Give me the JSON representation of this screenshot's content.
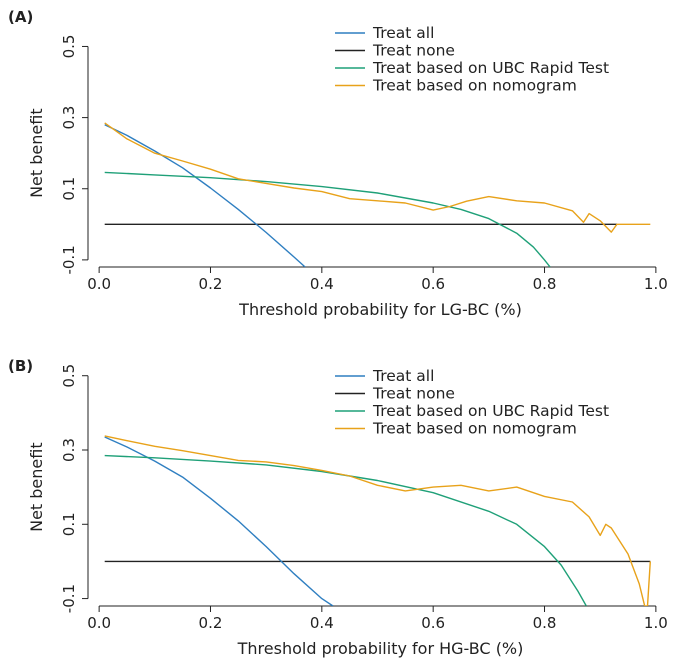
{
  "chart_data": [
    {
      "type": "line",
      "panel_label": "(A)",
      "xlabel": "Threshold probability for LG-BC (%)",
      "ylabel": "Net benefit",
      "xlim": [
        -0.02,
        1.02
      ],
      "ylim": [
        -0.12,
        0.58
      ],
      "x_ticks": [
        0.0,
        0.2,
        0.4,
        0.6,
        0.8,
        1.0
      ],
      "x_tick_labels": [
        "0.0",
        "0.2",
        "0.4",
        "0.6",
        "0.8",
        "1.0"
      ],
      "y_ticks": [
        -0.1,
        0.1,
        0.3,
        0.5
      ],
      "y_tick_labels": [
        "-0.1",
        "0.1",
        "0.3",
        "0.5"
      ],
      "grid": false,
      "legend_position": "top-right",
      "series": [
        {
          "name": "Treat all",
          "color": "#2f7fc1",
          "x": [
            0.01,
            0.05,
            0.1,
            0.15,
            0.2,
            0.25,
            0.3,
            0.35,
            0.37
          ],
          "y": [
            0.28,
            0.25,
            0.206,
            0.159,
            0.102,
            0.042,
            -0.023,
            -0.092,
            -0.12
          ]
        },
        {
          "name": "Treat none",
          "color": "#222222",
          "x": [
            0.01,
            0.93
          ],
          "y": [
            0.0,
            0.0
          ]
        },
        {
          "name": "Treat based on UBC Rapid Test",
          "color": "#1fa078",
          "x": [
            0.01,
            0.1,
            0.2,
            0.3,
            0.4,
            0.5,
            0.6,
            0.65,
            0.7,
            0.75,
            0.78,
            0.8,
            0.81
          ],
          "y": [
            0.146,
            0.139,
            0.131,
            0.12,
            0.106,
            0.088,
            0.06,
            0.042,
            0.016,
            -0.025,
            -0.064,
            -0.1,
            -0.12
          ]
        },
        {
          "name": "Treat based on nomogram",
          "color": "#e8a21a",
          "x": [
            0.01,
            0.05,
            0.1,
            0.15,
            0.2,
            0.25,
            0.3,
            0.35,
            0.4,
            0.45,
            0.5,
            0.55,
            0.6,
            0.63,
            0.66,
            0.7,
            0.75,
            0.8,
            0.85,
            0.87,
            0.88,
            0.9,
            0.92,
            0.93,
            0.95,
            0.99
          ],
          "y": [
            0.285,
            0.24,
            0.2,
            0.178,
            0.155,
            0.128,
            0.115,
            0.102,
            0.092,
            0.072,
            0.066,
            0.06,
            0.04,
            0.05,
            0.065,
            0.078,
            0.066,
            0.06,
            0.038,
            0.006,
            0.03,
            0.01,
            -0.022,
            0.0,
            0.0,
            0.0
          ]
        }
      ]
    },
    {
      "type": "line",
      "panel_label": "(B)",
      "xlabel": "Threshold probability for HG-BC (%)",
      "ylabel": "Net benefit",
      "xlim": [
        -0.02,
        1.02
      ],
      "ylim": [
        -0.12,
        0.58
      ],
      "x_ticks": [
        0.0,
        0.2,
        0.4,
        0.6,
        0.8,
        1.0
      ],
      "x_tick_labels": [
        "0.0",
        "0.2",
        "0.4",
        "0.6",
        "0.8",
        "1.0"
      ],
      "y_ticks": [
        -0.1,
        0.1,
        0.3,
        0.5
      ],
      "y_tick_labels": [
        "-0.1",
        "0.1",
        "0.3",
        "0.5"
      ],
      "grid": false,
      "legend_position": "top-right",
      "series": [
        {
          "name": "Treat all",
          "color": "#2f7fc1",
          "x": [
            0.01,
            0.05,
            0.1,
            0.15,
            0.2,
            0.25,
            0.3,
            0.35,
            0.4,
            0.42
          ],
          "y": [
            0.335,
            0.308,
            0.27,
            0.227,
            0.17,
            0.109,
            0.04,
            -0.033,
            -0.1,
            -0.12
          ]
        },
        {
          "name": "Treat none",
          "color": "#222222",
          "x": [
            0.01,
            0.99
          ],
          "y": [
            0.0,
            0.0
          ]
        },
        {
          "name": "Treat based on UBC Rapid Test",
          "color": "#1fa078",
          "x": [
            0.01,
            0.1,
            0.2,
            0.3,
            0.4,
            0.5,
            0.6,
            0.7,
            0.75,
            0.8,
            0.83,
            0.86,
            0.875
          ],
          "y": [
            0.285,
            0.279,
            0.27,
            0.26,
            0.242,
            0.218,
            0.185,
            0.135,
            0.1,
            0.04,
            -0.01,
            -0.08,
            -0.12
          ]
        },
        {
          "name": "Treat based on nomogram",
          "color": "#e8a21a",
          "x": [
            0.01,
            0.05,
            0.1,
            0.15,
            0.2,
            0.25,
            0.3,
            0.35,
            0.4,
            0.45,
            0.5,
            0.55,
            0.6,
            0.65,
            0.7,
            0.75,
            0.8,
            0.85,
            0.88,
            0.9,
            0.91,
            0.92,
            0.95,
            0.97,
            0.98,
            0.985,
            0.99
          ],
          "y": [
            0.338,
            0.325,
            0.31,
            0.298,
            0.285,
            0.272,
            0.268,
            0.258,
            0.245,
            0.23,
            0.205,
            0.19,
            0.2,
            0.205,
            0.19,
            0.2,
            0.175,
            0.16,
            0.12,
            0.07,
            0.1,
            0.09,
            0.02,
            -0.06,
            -0.12,
            -0.12,
            0.0
          ]
        }
      ]
    }
  ]
}
